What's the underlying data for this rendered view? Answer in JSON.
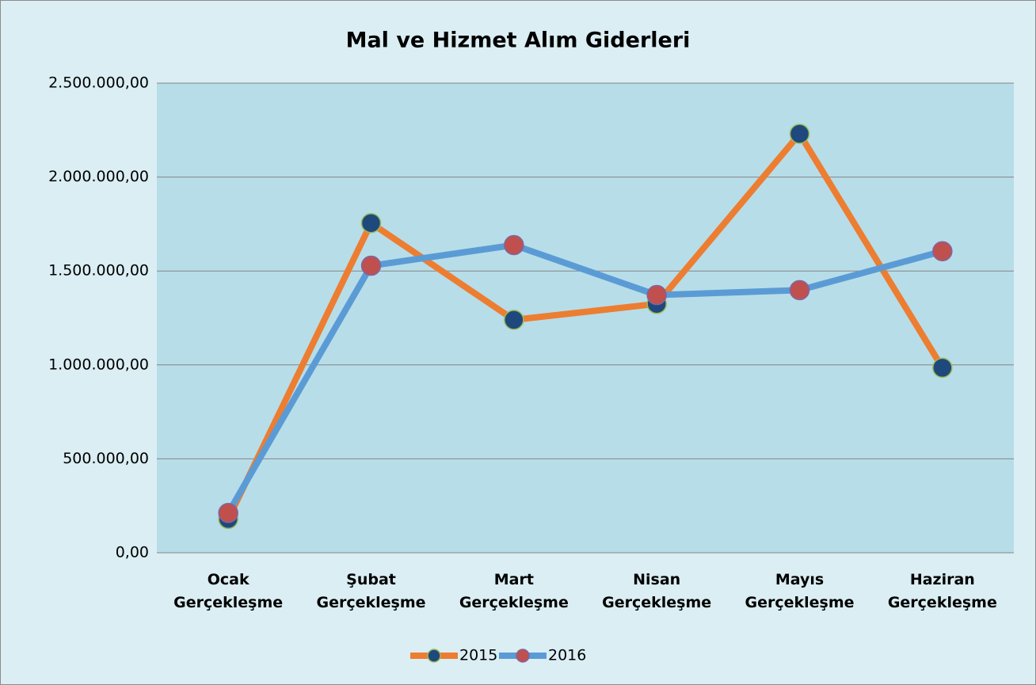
{
  "chart_data": {
    "type": "line",
    "title": "Mal ve Hizmet Alım Giderleri",
    "categories": [
      "Ocak Gerçekleşme",
      "Şubat Gerçekleşme",
      "Mart Gerçekleşme",
      "Nisan Gerçekleşme",
      "Mayıs Gerçekleşme",
      "Haziran Gerçekleşme"
    ],
    "series": [
      {
        "name": "2015",
        "color": "#ed7d31",
        "marker_color": "#1f497d",
        "values": [
          180000,
          1755000,
          1240000,
          1325000,
          2230000,
          985000
        ]
      },
      {
        "name": "2016",
        "color": "#5b9bd5",
        "marker_color": "#c0504d",
        "values": [
          212000,
          1528000,
          1638000,
          1372000,
          1398000,
          1605000
        ]
      }
    ],
    "ylim": [
      0,
      2500000
    ],
    "yticks": [
      {
        "value": 0,
        "label": "0,00"
      },
      {
        "value": 500000,
        "label": "500.000,00"
      },
      {
        "value": 1000000,
        "label": "1.000.000,00"
      },
      {
        "value": 1500000,
        "label": "1.500.000,00"
      },
      {
        "value": 2000000,
        "label": "2.000.000,00"
      },
      {
        "value": 2500000,
        "label": "2.500.000,00"
      }
    ],
    "grid": true,
    "legend": "bottom"
  }
}
